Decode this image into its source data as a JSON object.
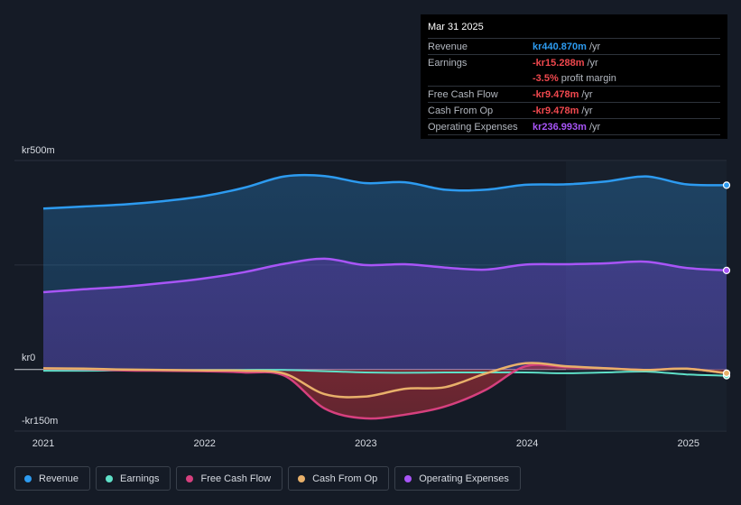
{
  "tooltip": {
    "date": "Mar 31 2025",
    "rows": {
      "revenue": {
        "label": "Revenue",
        "value": "kr440.870m",
        "unit": "/yr",
        "color": "#2d9bf0"
      },
      "earnings": {
        "label": "Earnings",
        "value": "-kr15.288m",
        "unit": "/yr",
        "color": "#f0484e"
      },
      "margin": {
        "value": "-3.5%",
        "unit": "profit margin",
        "color": "#f0484e"
      },
      "fcf": {
        "label": "Free Cash Flow",
        "value": "-kr9.478m",
        "unit": "/yr",
        "color": "#f0484e"
      },
      "cfo": {
        "label": "Cash From Op",
        "value": "-kr9.478m",
        "unit": "/yr",
        "color": "#f0484e"
      },
      "opex": {
        "label": "Operating Expenses",
        "value": "kr236.993m",
        "unit": "/yr",
        "color": "#a855f7"
      }
    }
  },
  "legend": [
    {
      "label": "Revenue",
      "color": "#2d9bf0"
    },
    {
      "label": "Earnings",
      "color": "#5fe0c8"
    },
    {
      "label": "Free Cash Flow",
      "color": "#d6407e"
    },
    {
      "label": "Cash From Op",
      "color": "#e8b06a"
    },
    {
      "label": "Operating Expenses",
      "color": "#a855f7"
    }
  ],
  "chart_data": {
    "type": "area",
    "title": "",
    "y_unit": "kr (millions)",
    "ylim": [
      -150,
      500
    ],
    "y_tick_labels": [
      {
        "value": 500,
        "label": "kr500m"
      },
      {
        "value": 0,
        "label": "kr0"
      },
      {
        "value": -150,
        "label": "-kr150m"
      }
    ],
    "x_tick_labels": [
      {
        "value": 2021.0,
        "label": "2021"
      },
      {
        "value": 2022.0,
        "label": "2022"
      },
      {
        "value": 2023.0,
        "label": "2023"
      },
      {
        "value": 2024.0,
        "label": "2024"
      },
      {
        "value": 2025.0,
        "label": "2025"
      }
    ],
    "xlim": [
      2020.83,
      2025.25
    ],
    "highlight_start": 2024.25,
    "x": [
      2021.0,
      2021.25,
      2021.5,
      2021.75,
      2022.0,
      2022.25,
      2022.5,
      2022.75,
      2023.0,
      2023.25,
      2023.5,
      2023.75,
      2024.0,
      2024.25,
      2024.5,
      2024.75,
      2025.0,
      2025.25
    ],
    "series": [
      {
        "name": "Revenue",
        "color": "#2d9bf0",
        "values": [
          385,
          390,
          395,
          403,
          415,
          435,
          462,
          463,
          446,
          448,
          430,
          430,
          442,
          443,
          450,
          462,
          443,
          441
        ]
      },
      {
        "name": "Operating Expenses",
        "color": "#a855f7",
        "values": [
          185,
          192,
          198,
          207,
          218,
          233,
          253,
          265,
          250,
          252,
          244,
          239,
          251,
          252,
          254,
          258,
          243,
          237
        ]
      },
      {
        "name": "Earnings",
        "color": "#5fe0c8",
        "values": [
          -3,
          -3,
          -2,
          -2,
          -1,
          -1,
          -1,
          -4,
          -7,
          -8,
          -7,
          -7,
          -7,
          -9,
          -7,
          -5,
          -12,
          -15
        ]
      },
      {
        "name": "Free Cash Flow",
        "color": "#d6407e",
        "values": [
          2,
          1,
          -2,
          -3,
          -4,
          -7,
          -15,
          -95,
          -119,
          -110,
          -90,
          -50,
          8,
          6,
          3,
          -1,
          2,
          -9
        ]
      },
      {
        "name": "Cash From Op",
        "color": "#e8b06a",
        "values": [
          3,
          2,
          0,
          -1,
          -2,
          -3,
          -10,
          -60,
          -66,
          -47,
          -43,
          -10,
          15,
          8,
          3,
          -1,
          2,
          -9
        ]
      }
    ]
  }
}
